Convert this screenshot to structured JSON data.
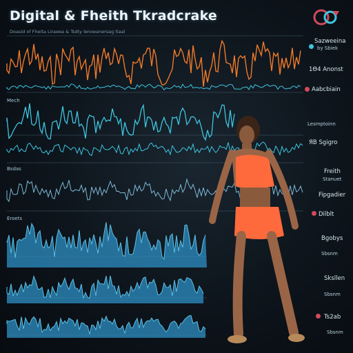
{
  "header": {
    "title": "Digital & Fheith Tkradcrake",
    "subtitle": "Doasid of Fheita Liraeea & Tsdty lenoeanersag ltaal"
  },
  "rows": [
    {
      "label": ""
    },
    {
      "label": "Mech"
    },
    {
      "label": "Bsdas"
    },
    {
      "label": "Eroets"
    }
  ],
  "side": {
    "items": [
      {
        "label": "Sazweeina",
        "sub": "by Sbiek"
      },
      {
        "label": "1Ѳ4 Anonst",
        "sub": ""
      },
      {
        "label": "Aabcbiain",
        "sub": ""
      },
      {
        "label": "Lesmptoinn",
        "sub": ""
      },
      {
        "label": "ЯB Sgigro",
        "sub": ""
      },
      {
        "label": "Freith",
        "sub": "Stanuet"
      },
      {
        "label": "Fipgadier",
        "sub": ""
      },
      {
        "label": "Dilblt",
        "sub": ""
      },
      {
        "label": "Bgobys",
        "sub": "Sbsnm"
      },
      {
        "label": "Sksllen",
        "sub": "Sbsnm"
      },
      {
        "label": "Ts2ab",
        "sub": "Sbsnm"
      }
    ]
  },
  "colors": {
    "accent_orange": "#f07a2a",
    "accent_cyan": "#3fc6e0",
    "fill_blue": "#2d8fc4",
    "figure_outfit": "#ff6a3d"
  },
  "icons": [
    "logo-icon",
    "heart-icon",
    "pulse-icon"
  ]
}
